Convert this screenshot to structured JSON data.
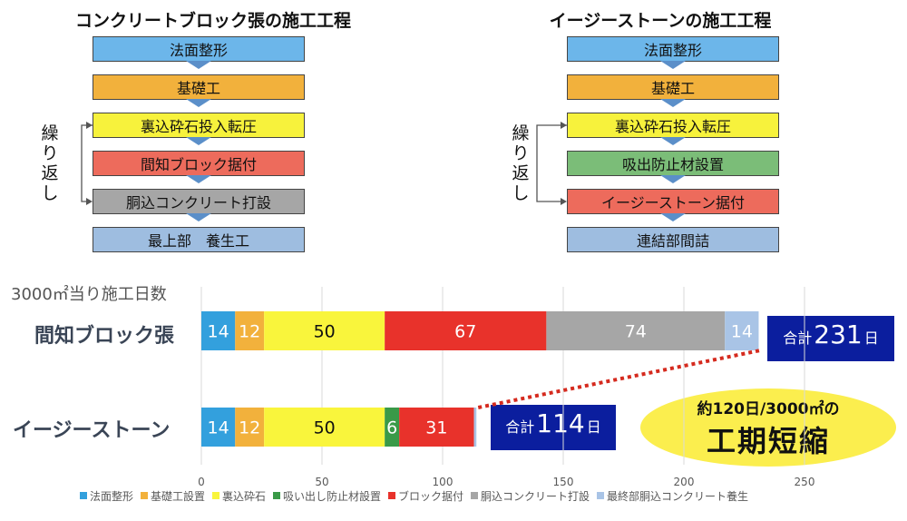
{
  "flows": [
    {
      "title": "コンクリートブロック張の施工工程",
      "steps": [
        {
          "label": "法面整形",
          "color": "#6cb6ea"
        },
        {
          "label": "基礎工",
          "color": "#f2b13c"
        },
        {
          "label": "裏込砕石投入転圧",
          "color": "#f7f23c"
        },
        {
          "label": "間知ブロック据付",
          "color": "#ed6b5c"
        },
        {
          "label": "胴込コンクリート打設",
          "color": "#a6a6a6"
        },
        {
          "label": "最上部　養生工",
          "color": "#9ebde0"
        }
      ],
      "repeat_label": "繰り返し"
    },
    {
      "title": "イージーストーンの施工工程",
      "steps": [
        {
          "label": "法面整形",
          "color": "#6cb6ea"
        },
        {
          "label": "基礎工",
          "color": "#f2b13c"
        },
        {
          "label": "裏込砕石投入転圧",
          "color": "#f7f23c"
        },
        {
          "label": "吸出防止材設置",
          "color": "#7bbd78"
        },
        {
          "label": "イージーストーン据付",
          "color": "#ed6b5c"
        },
        {
          "label": "連結部間詰",
          "color": "#9ebde0"
        }
      ],
      "repeat_label": "繰り返し"
    }
  ],
  "chart_data": {
    "type": "bar",
    "orientation": "horizontal",
    "stacked": true,
    "title": "3000㎡当り施工日数",
    "categories": [
      "間知ブロック張",
      "イージーストーン"
    ],
    "series": [
      {
        "name": "法面整形",
        "color": "#33a0dd",
        "values": [
          14,
          14
        ]
      },
      {
        "name": "基礎工設置",
        "color": "#f2b13c",
        "values": [
          12,
          12
        ]
      },
      {
        "name": "裏込砕石",
        "color": "#f9f53c",
        "values": [
          50,
          50
        ]
      },
      {
        "name": "吸い出し防止材設置",
        "color": "#3a9a48",
        "values": [
          0,
          6
        ]
      },
      {
        "name": "ブロック据付",
        "color": "#e8322b",
        "values": [
          67,
          31
        ]
      },
      {
        "name": "胴込コンクリート打設",
        "color": "#a6a6a6",
        "values": [
          74,
          0
        ]
      },
      {
        "name": "最終部胴込コンクリート養生",
        "color": "#a9c4e6",
        "values": [
          14,
          1
        ]
      }
    ],
    "xlim": [
      0,
      275
    ],
    "xticks": [
      0,
      50,
      100,
      150,
      200,
      250
    ],
    "grid": true,
    "legend": "bottom",
    "totals": [
      {
        "prefix": "合計",
        "value": "231",
        "suffix": "日"
      },
      {
        "prefix": "合計",
        "value": "114",
        "suffix": "日"
      }
    ]
  },
  "callout": {
    "line1": "約120日/3000㎡の",
    "line2": "工期短縮"
  }
}
